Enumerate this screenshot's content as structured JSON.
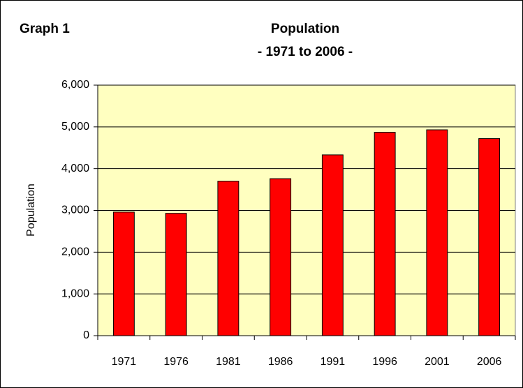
{
  "chart_data": {
    "type": "bar",
    "label": "Graph 1",
    "title": "Population",
    "subtitle": "- 1971 to 2006 -",
    "y_label": "Population",
    "categories": [
      "1971",
      "1976",
      "1981",
      "1986",
      "1991",
      "1996",
      "2001",
      "2006"
    ],
    "values": [
      2960,
      2930,
      3700,
      3760,
      4330,
      4870,
      4930,
      4720
    ],
    "color": "#ff0000",
    "ylim": [
      0,
      6000
    ],
    "yticks": [
      0,
      {
        "value": 1000,
        "label": "1,000"
      },
      {
        "value": 2000,
        "label": "2,000"
      },
      {
        "value": 3000,
        "label": "3,000"
      },
      {
        "value": 4000,
        "label": "4,000"
      },
      {
        "value": 5000,
        "label": "5,000"
      },
      {
        "value": 6000,
        "label": "6,000"
      }
    ],
    "grid": true
  }
}
